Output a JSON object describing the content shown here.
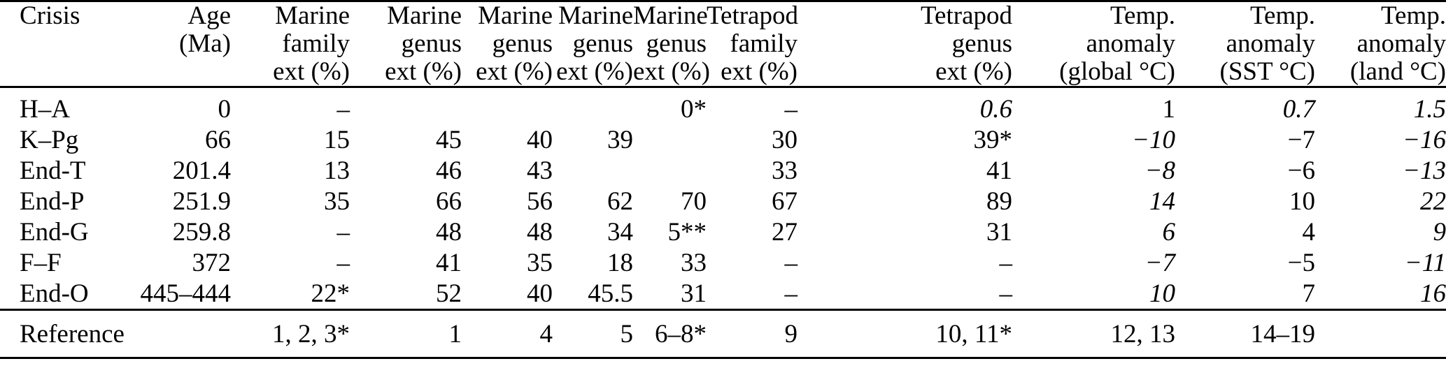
{
  "meta": {
    "kind": "scientific-paper data table",
    "background_color": "#ffffff",
    "text_color": "#000000",
    "rule_color": "#000000"
  },
  "table": {
    "columns": [
      {
        "id": "crisis",
        "align": "left",
        "header_lines": [
          "Crisis"
        ]
      },
      {
        "id": "age_ma",
        "align": "right",
        "header_lines": [
          "Age",
          "(Ma)"
        ]
      },
      {
        "id": "marine_family_ext",
        "align": "right",
        "header_lines": [
          "Marine",
          "family",
          "ext (%)"
        ]
      },
      {
        "id": "marine_genus_ext_1",
        "align": "right",
        "header_lines": [
          "Marine",
          "genus",
          "ext (%)"
        ]
      },
      {
        "id": "marine_genus_ext_2",
        "align": "right",
        "header_lines": [
          "Marine",
          "genus",
          "ext (%)"
        ]
      },
      {
        "id": "marine_genus_ext_3",
        "align": "right",
        "header_lines": [
          "Marine",
          "genus",
          "ext (%)"
        ]
      },
      {
        "id": "marine_genus_ext_4",
        "align": "right",
        "header_lines": [
          "Marine",
          "genus",
          "ext (%)"
        ]
      },
      {
        "id": "tetrapod_family_ext",
        "align": "right",
        "header_lines": [
          "Tetrapod",
          "family",
          "ext (%)"
        ]
      },
      {
        "id": "tetrapod_genus_ext",
        "align": "right",
        "header_lines": [
          "Tetrapod",
          "genus",
          "ext (%)"
        ]
      },
      {
        "id": "temp_anomaly_global",
        "align": "right",
        "header_lines": [
          "Temp.",
          "anomaly",
          "(global °C)"
        ]
      },
      {
        "id": "temp_anomaly_sst",
        "align": "right",
        "header_lines": [
          "Temp.",
          "anomaly",
          "(SST °C)"
        ]
      },
      {
        "id": "temp_anomaly_land",
        "align": "right",
        "header_lines": [
          "Temp.",
          "anomaly",
          "(land °C)"
        ]
      }
    ],
    "style_legend": {
      "n": "normal",
      "b": "bold",
      "i": "italic"
    },
    "rows": [
      {
        "cells": [
          {
            "t": "H–A",
            "s": "n"
          },
          {
            "t": "0",
            "s": "n"
          },
          {
            "t": "–",
            "s": "n"
          },
          {
            "t": "",
            "s": "n"
          },
          {
            "t": "",
            "s": "n"
          },
          {
            "t": "",
            "s": "n"
          },
          {
            "t": "0*",
            "s": "b"
          },
          {
            "t": "–",
            "s": "n"
          },
          {
            "t": "0.6",
            "s": "i"
          },
          {
            "t": "1",
            "s": "b"
          },
          {
            "t": "0.7",
            "s": "i"
          },
          {
            "t": "1.5",
            "s": "i"
          }
        ]
      },
      {
        "cells": [
          {
            "t": "K–Pg",
            "s": "n"
          },
          {
            "t": "66",
            "s": "n"
          },
          {
            "t": "15",
            "s": "n"
          },
          {
            "t": "45",
            "s": "b"
          },
          {
            "t": "40",
            "s": "b"
          },
          {
            "t": "39",
            "s": "b"
          },
          {
            "t": "",
            "s": "n"
          },
          {
            "t": "30",
            "s": "n"
          },
          {
            "t": "39*",
            "s": "b"
          },
          {
            "t": "−10",
            "s": "i"
          },
          {
            "t": "−7",
            "s": "b"
          },
          {
            "t": "−16",
            "s": "i"
          }
        ]
      },
      {
        "cells": [
          {
            "t": "End-T",
            "s": "n"
          },
          {
            "t": "201.4",
            "s": "n"
          },
          {
            "t": "13",
            "s": "n"
          },
          {
            "t": "46",
            "s": "b"
          },
          {
            "t": "43",
            "s": "b"
          },
          {
            "t": "",
            "s": "n"
          },
          {
            "t": "",
            "s": "n"
          },
          {
            "t": "33",
            "s": "n"
          },
          {
            "t": "41",
            "s": "b"
          },
          {
            "t": "−8",
            "s": "i"
          },
          {
            "t": "−6",
            "s": "b"
          },
          {
            "t": "−13",
            "s": "i"
          }
        ]
      },
      {
        "cells": [
          {
            "t": "End-P",
            "s": "n"
          },
          {
            "t": "251.9",
            "s": "n"
          },
          {
            "t": "35",
            "s": "n"
          },
          {
            "t": "66",
            "s": "b"
          },
          {
            "t": "56",
            "s": "b"
          },
          {
            "t": "62",
            "s": "b"
          },
          {
            "t": "70",
            "s": "n"
          },
          {
            "t": "67",
            "s": "n"
          },
          {
            "t": "89",
            "s": "b"
          },
          {
            "t": "14",
            "s": "i"
          },
          {
            "t": "10",
            "s": "b"
          },
          {
            "t": "22",
            "s": "i"
          }
        ]
      },
      {
        "cells": [
          {
            "t": "End-G",
            "s": "n"
          },
          {
            "t": "259.8",
            "s": "n"
          },
          {
            "t": "–",
            "s": "n"
          },
          {
            "t": "48",
            "s": "n"
          },
          {
            "t": "48",
            "s": "n"
          },
          {
            "t": "34",
            "s": "n"
          },
          {
            "t": "5**",
            "s": "b"
          },
          {
            "t": "27",
            "s": "n"
          },
          {
            "t": "31",
            "s": "b"
          },
          {
            "t": "6",
            "s": "i"
          },
          {
            "t": "4",
            "s": "b"
          },
          {
            "t": "9",
            "s": "i"
          }
        ]
      },
      {
        "cells": [
          {
            "t": "F–F",
            "s": "n"
          },
          {
            "t": "372",
            "s": "n"
          },
          {
            "t": "–",
            "s": "n"
          },
          {
            "t": "41",
            "s": "b"
          },
          {
            "t": "35",
            "s": "b"
          },
          {
            "t": "18",
            "s": "b"
          },
          {
            "t": "33",
            "s": "n"
          },
          {
            "t": "–",
            "s": "n"
          },
          {
            "t": "–",
            "s": "n"
          },
          {
            "t": "−7",
            "s": "i"
          },
          {
            "t": "−5",
            "s": "b"
          },
          {
            "t": "−11",
            "s": "i"
          }
        ]
      },
      {
        "cells": [
          {
            "t": "End-O",
            "s": "n"
          },
          {
            "t": "445–444",
            "s": "n"
          },
          {
            "t": "22*",
            "s": "n"
          },
          {
            "t": "52",
            "s": "b"
          },
          {
            "t": "40",
            "s": "b"
          },
          {
            "t": "45.5",
            "s": "b"
          },
          {
            "t": "31",
            "s": "n"
          },
          {
            "t": "–",
            "s": "n"
          },
          {
            "t": "–",
            "s": "n"
          },
          {
            "t": "10",
            "s": "i"
          },
          {
            "t": "7",
            "s": "b"
          },
          {
            "t": "16",
            "s": "i"
          }
        ]
      }
    ],
    "reference_row": {
      "cells": [
        {
          "t": "Reference",
          "s": "n"
        },
        {
          "t": "",
          "s": "n"
        },
        {
          "t": "1, 2, 3*",
          "s": "n"
        },
        {
          "t": "1",
          "s": "n"
        },
        {
          "t": "4",
          "s": "n"
        },
        {
          "t": "5",
          "s": "n"
        },
        {
          "t": "6–8*",
          "s": "n"
        },
        {
          "t": "9",
          "s": "n"
        },
        {
          "t": "10, 11*",
          "s": "n"
        },
        {
          "t": "12, 13",
          "s": "n"
        },
        {
          "t": "14–19",
          "s": "n"
        },
        {
          "t": "",
          "s": "n"
        }
      ]
    }
  }
}
